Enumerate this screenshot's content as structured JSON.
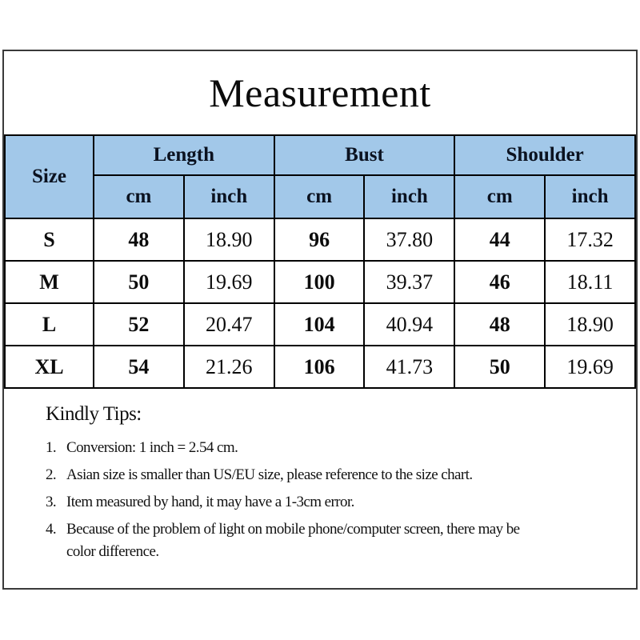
{
  "title": "Measurement",
  "table": {
    "corner_label": "Size",
    "groups": [
      "Length",
      "Bust",
      "Shoulder"
    ],
    "units": [
      "cm",
      "inch",
      "cm",
      "inch",
      "cm",
      "inch"
    ],
    "rows": [
      [
        "S",
        "48",
        "18.90",
        "96",
        "37.80",
        "44",
        "17.32"
      ],
      [
        "M",
        "50",
        "19.69",
        "100",
        "39.37",
        "46",
        "18.11"
      ],
      [
        "L",
        "52",
        "20.47",
        "104",
        "40.94",
        "48",
        "18.90"
      ],
      [
        "XL",
        "54",
        "21.26",
        "106",
        "41.73",
        "50",
        "19.69"
      ]
    ]
  },
  "tips": {
    "heading": "Kindly Tips:",
    "items": [
      {
        "num": "1.",
        "text": "Conversion: 1 inch = 2.54 cm."
      },
      {
        "num": "2.",
        "text": "Asian size is smaller than US/EU size, please reference to the size chart."
      },
      {
        "num": "3.",
        "text": "Item measured by hand, it may have a 1-3cm error."
      },
      {
        "num": "4.",
        "text": "Because of the problem of light on mobile phone/computer screen, there may be color difference."
      }
    ]
  },
  "colors": {
    "header_bg": "#a2c8e9",
    "table_border": "#000000",
    "frame_border": "#3a3a3a",
    "text": "#0d0d0d"
  }
}
